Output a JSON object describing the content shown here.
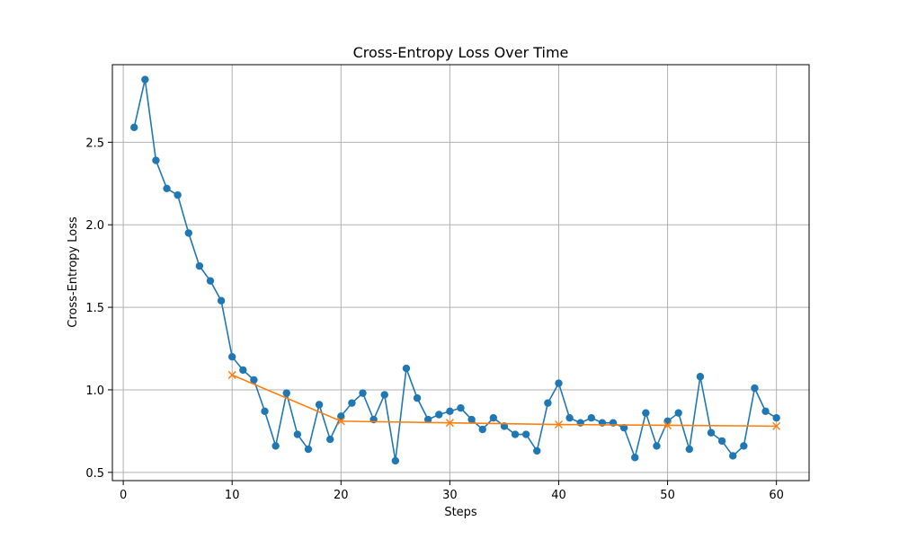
{
  "chart_data": {
    "type": "line",
    "title": "Cross-Entropy Loss Over Time",
    "xlabel": "Steps",
    "ylabel": "Cross-Entropy Loss",
    "xlim": [
      -1,
      63
    ],
    "ylim": [
      0.45,
      2.97
    ],
    "xticks": [
      0,
      10,
      20,
      30,
      40,
      50,
      60
    ],
    "xtick_labels": [
      "0",
      "10",
      "20",
      "30",
      "40",
      "50",
      "60"
    ],
    "yticks": [
      0.5,
      1.0,
      1.5,
      2.0,
      2.5
    ],
    "ytick_labels": [
      "0.5",
      "1.0",
      "1.5",
      "2.0",
      "2.5"
    ],
    "grid": true,
    "colors": {
      "series_1": "#1f77b4",
      "series_2": "#ff7f0e",
      "grid": "#b0b0b0"
    },
    "series": [
      {
        "marker": "circle",
        "x": [
          1,
          2,
          3,
          4,
          5,
          6,
          7,
          8,
          9,
          10,
          11,
          12,
          13,
          14,
          15,
          16,
          17,
          18,
          19,
          20,
          21,
          22,
          23,
          24,
          25,
          26,
          27,
          28,
          29,
          30,
          31,
          32,
          33,
          34,
          35,
          36,
          37,
          38,
          39,
          40,
          41,
          42,
          43,
          44,
          45,
          46,
          47,
          48,
          49,
          50,
          51,
          52,
          53,
          54,
          55,
          56,
          57,
          58,
          59,
          60
        ],
        "values": [
          2.59,
          2.88,
          2.39,
          2.22,
          2.18,
          1.95,
          1.75,
          1.66,
          1.54,
          1.2,
          1.12,
          1.06,
          0.87,
          0.66,
          0.98,
          0.73,
          0.64,
          0.91,
          0.7,
          0.84,
          0.92,
          0.98,
          0.82,
          0.97,
          0.57,
          1.13,
          0.95,
          0.82,
          0.85,
          0.87,
          0.89,
          0.82,
          0.76,
          0.83,
          0.78,
          0.73,
          0.73,
          0.63,
          0.92,
          1.04,
          0.83,
          0.8,
          0.83,
          0.8,
          0.8,
          0.77,
          0.59,
          0.86,
          0.66,
          0.81,
          0.86,
          0.64,
          1.08,
          0.74,
          0.69,
          0.6,
          0.66,
          1.01,
          0.87,
          0.83
        ]
      },
      {
        "marker": "x",
        "x": [
          10,
          20,
          30,
          40,
          50,
          60
        ],
        "values": [
          1.09,
          0.81,
          0.8,
          0.79,
          0.785,
          0.78
        ]
      }
    ]
  }
}
